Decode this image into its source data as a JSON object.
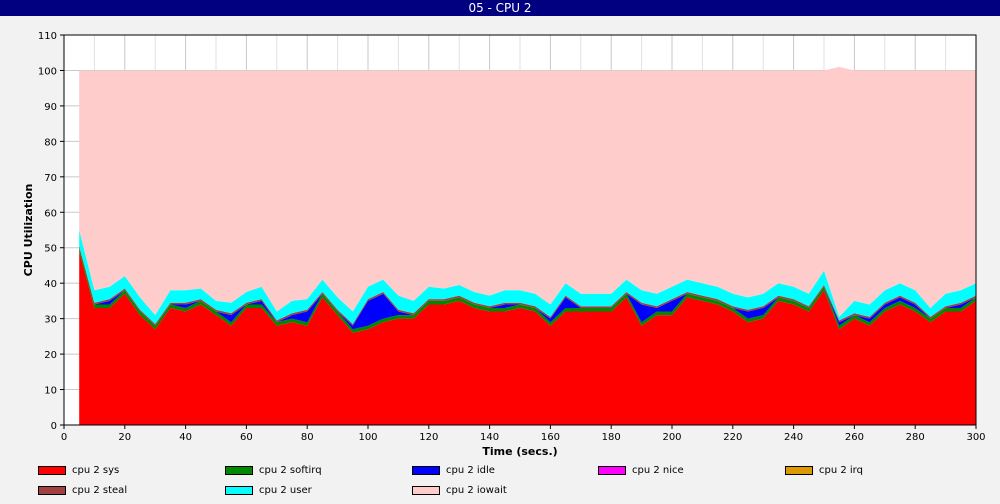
{
  "window": {
    "title": "05 - CPU 2"
  },
  "chart_data": {
    "type": "area",
    "stacked": true,
    "title": "",
    "xlabel": "Time (secs.)",
    "ylabel": "CPU Utilization",
    "xlim": [
      0,
      300
    ],
    "ylim": [
      0,
      110
    ],
    "xticks": [
      0,
      20,
      40,
      60,
      80,
      100,
      120,
      140,
      160,
      180,
      200,
      220,
      240,
      260,
      280,
      300
    ],
    "yticks": [
      0,
      10,
      20,
      30,
      40,
      50,
      60,
      70,
      80,
      90,
      100,
      110
    ],
    "grid": true,
    "legend_position": "bottom",
    "x": [
      5,
      10,
      15,
      20,
      25,
      30,
      35,
      40,
      45,
      50,
      55,
      60,
      65,
      70,
      75,
      80,
      85,
      90,
      95,
      100,
      105,
      110,
      115,
      120,
      125,
      130,
      135,
      140,
      145,
      150,
      155,
      160,
      165,
      170,
      175,
      180,
      185,
      190,
      195,
      200,
      205,
      210,
      215,
      220,
      225,
      230,
      235,
      240,
      245,
      250,
      255,
      260,
      265,
      270,
      275,
      280,
      285,
      290,
      295,
      300
    ],
    "series": [
      {
        "name": "cpu 2 sys",
        "color": "#ff0000",
        "values": [
          49,
          33,
          33,
          37,
          31,
          27,
          33,
          32,
          34,
          31,
          28,
          33,
          33,
          28,
          29,
          28,
          36,
          31,
          26,
          27,
          29,
          30,
          30,
          34,
          34,
          35,
          33,
          32,
          32,
          33,
          32,
          28,
          32,
          32,
          32,
          32,
          36,
          28,
          31,
          31,
          36,
          35,
          34,
          32,
          29,
          30,
          35,
          34,
          32,
          38,
          27,
          30,
          28,
          32,
          34,
          32,
          29,
          32,
          32,
          35
        ]
      },
      {
        "name": "cpu 2 softirq",
        "color": "#008800",
        "values": [
          1,
          1,
          1,
          1,
          1,
          1,
          1,
          1,
          1,
          1,
          1,
          1,
          1,
          1,
          1,
          1,
          1,
          1,
          1,
          1,
          1,
          1,
          1,
          1,
          1,
          1,
          1,
          1,
          1,
          1,
          1,
          1,
          1,
          1,
          1,
          1,
          1,
          1,
          1,
          1,
          1,
          1,
          1,
          1,
          1,
          1,
          1,
          1,
          1,
          1,
          1,
          1,
          1,
          1,
          1,
          1,
          1,
          1,
          1,
          1
        ]
      },
      {
        "name": "cpu 2 idle",
        "color": "#0000ff",
        "values": [
          0,
          0,
          1,
          0,
          0,
          0,
          0,
          1,
          0,
          0,
          2,
          0,
          1,
          0,
          1,
          3,
          0,
          0,
          1,
          7,
          7,
          1,
          0,
          0,
          0,
          0,
          0,
          0,
          1,
          0,
          0,
          1,
          3,
          0,
          0,
          0,
          0,
          5,
          1,
          3,
          0,
          0,
          0,
          0,
          2,
          2,
          0,
          0,
          0,
          0,
          1,
          0,
          1,
          1,
          1,
          1,
          0,
          0,
          1,
          0
        ]
      },
      {
        "name": "cpu 2 nice",
        "color": "#ff00ff",
        "values": [
          0,
          0,
          0,
          0,
          0,
          0,
          0,
          0,
          0,
          0,
          0,
          0,
          0,
          0,
          0,
          0,
          0,
          0,
          0,
          0,
          0,
          0,
          0,
          0,
          0,
          0,
          0,
          0,
          0,
          0,
          0,
          0,
          0,
          0,
          0,
          0,
          0,
          0,
          0,
          0,
          0,
          0,
          0,
          0,
          0,
          0,
          0,
          0,
          0,
          0,
          0,
          0,
          0,
          0,
          0,
          0,
          0,
          0,
          0,
          0
        ]
      },
      {
        "name": "cpu 2 irq",
        "color": "#dd9900",
        "values": [
          0,
          0,
          0,
          0,
          0,
          0,
          0,
          0,
          0,
          0,
          0,
          0,
          0,
          0,
          0,
          0,
          0,
          0,
          0,
          0,
          0,
          0,
          0,
          0,
          0,
          0,
          0,
          0,
          0,
          0,
          0,
          0,
          0,
          0,
          0,
          0,
          0,
          0,
          0,
          0,
          0,
          0,
          0,
          0,
          0,
          0,
          0,
          0,
          0,
          0,
          0,
          0,
          0,
          0,
          0,
          0,
          0,
          0,
          0,
          0
        ]
      },
      {
        "name": "cpu 2 steal",
        "color": "#a04040",
        "values": [
          0.5,
          0.5,
          0.5,
          0.5,
          0.5,
          0.5,
          0.5,
          0.5,
          0.5,
          0.5,
          0.5,
          0.5,
          0.5,
          0.5,
          0.5,
          0.5,
          0.5,
          0.5,
          0.5,
          0.5,
          0.5,
          0.5,
          0.5,
          0.5,
          0.5,
          0.5,
          0.5,
          0.5,
          0.5,
          0.5,
          0.5,
          0.5,
          0.5,
          0.5,
          0.5,
          0.5,
          0.5,
          0.5,
          0.5,
          0.5,
          0.5,
          0.5,
          0.5,
          0.5,
          0.5,
          0.5,
          0.5,
          0.5,
          0.5,
          0.5,
          0.5,
          0.5,
          0.5,
          0.5,
          0.5,
          0.5,
          0.5,
          0.5,
          0.5,
          0.5
        ]
      },
      {
        "name": "cpu 2 user",
        "color": "#00ffff",
        "values": [
          4.5,
          3.5,
          3.5,
          3.5,
          3.5,
          2.5,
          3.5,
          3.5,
          3,
          2.5,
          3,
          3,
          3.5,
          2.5,
          3.5,
          3,
          3.5,
          3.5,
          3.5,
          3.5,
          3.5,
          4,
          3.5,
          3.5,
          3,
          3,
          3,
          3,
          3.5,
          3.5,
          3.5,
          3.5,
          3.5,
          3.5,
          3.5,
          3.5,
          3.5,
          3.5,
          3.5,
          3.5,
          3.5,
          3.5,
          3.5,
          3.5,
          3.5,
          3.5,
          3.5,
          3.5,
          3.5,
          4,
          1,
          3.5,
          3.5,
          3.5,
          3.5,
          3.5,
          2.5,
          3.5,
          3.5,
          3.5
        ]
      },
      {
        "name": "cpu 2 iowait",
        "color": "#ffcccc",
        "values": [
          45,
          62,
          61,
          58,
          64,
          69,
          62,
          62,
          61.5,
          65,
          65.5,
          62.5,
          61,
          68,
          65,
          64.5,
          59,
          64,
          68,
          61,
          59,
          63.5,
          65,
          61,
          61.5,
          60.5,
          62.5,
          63.5,
          62,
          62,
          63,
          66,
          60,
          63,
          63,
          63,
          59,
          62,
          63,
          61,
          59,
          60,
          61,
          63,
          64,
          63,
          60,
          61,
          63,
          56.5,
          70.5,
          65,
          66,
          62,
          60,
          62,
          67,
          63,
          62,
          60
        ]
      }
    ]
  }
}
